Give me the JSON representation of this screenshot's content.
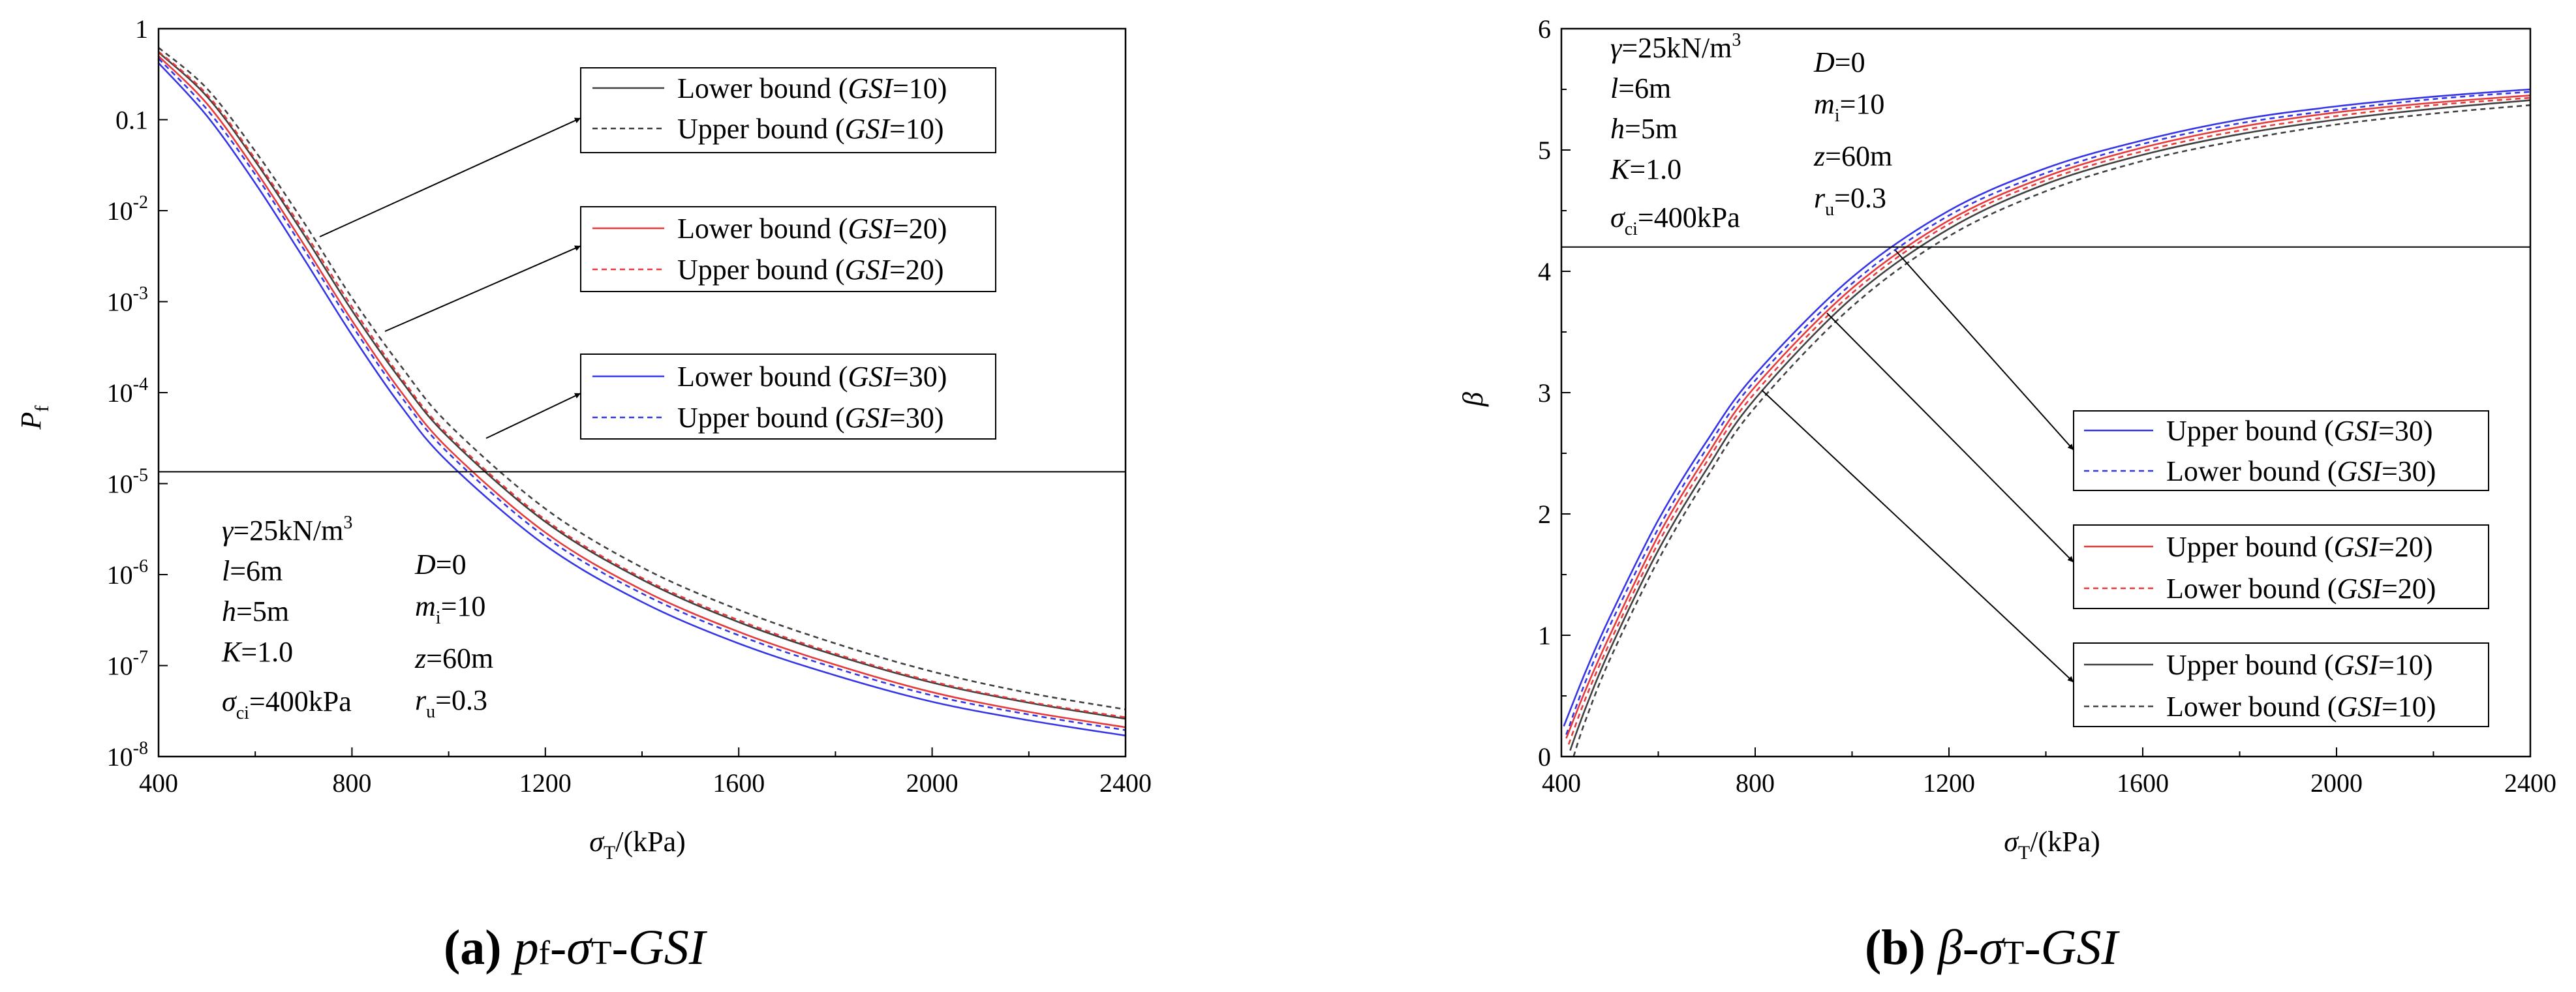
{
  "chart_data": [
    {
      "id": "a",
      "type": "line",
      "xlabel": {
        "main": "σ",
        "sub": "T",
        "tail": "/(kPa)"
      },
      "ylabel": {
        "main": "P",
        "sub": "f"
      },
      "yscale": "log",
      "xlim": [
        400,
        2400
      ],
      "ylim": [
        1e-08,
        1
      ],
      "xticks": [
        "400",
        "800",
        "1200",
        "1600",
        "2000",
        "2400"
      ],
      "yticks": [
        {
          "base": "1",
          "exp": ""
        },
        {
          "base": "0.1",
          "exp": ""
        },
        {
          "base": "10",
          "exp": "-2"
        },
        {
          "base": "10",
          "exp": "-3"
        },
        {
          "base": "10",
          "exp": "-4"
        },
        {
          "base": "10",
          "exp": "-5"
        },
        {
          "base": "10",
          "exp": "-6"
        },
        {
          "base": "10",
          "exp": "-7"
        },
        {
          "base": "10",
          "exp": "-8"
        }
      ],
      "reference_line": 1.35e-05,
      "legend_groups": [
        {
          "entries": [
            {
              "prefix": "Lower bound (",
              "gsi": "GSI",
              "suffix": "=10)",
              "color": "#404040",
              "dash": "solid"
            },
            {
              "prefix": "Upper bound (",
              "gsi": "GSI",
              "suffix": "=10)",
              "color": "#404040",
              "dash": "dashed"
            }
          ]
        },
        {
          "entries": [
            {
              "prefix": "Lower bound (",
              "gsi": "GSI",
              "suffix": "=20)",
              "color": "#e8393a",
              "dash": "solid"
            },
            {
              "prefix": "Upper bound (",
              "gsi": "GSI",
              "suffix": "=20)",
              "color": "#e8393a",
              "dash": "dashed"
            }
          ]
        },
        {
          "entries": [
            {
              "prefix": "Lower bound (",
              "gsi": "GSI",
              "suffix": "=30)",
              "color": "#3535e8",
              "dash": "solid"
            },
            {
              "prefix": "Upper bound (",
              "gsi": "GSI",
              "suffix": "=30)",
              "color": "#3535e8",
              "dash": "dashed"
            }
          ]
        }
      ],
      "params_left": [
        {
          "sym": "γ",
          "sub": "",
          "val": "=25kN/m",
          "sup": "3"
        },
        {
          "sym": "l",
          "sub": "",
          "val": "=6m",
          "sup": ""
        },
        {
          "sym": "h",
          "sub": "",
          "val": "=5m",
          "sup": ""
        },
        {
          "sym": "K",
          "sub": "",
          "val": "=1.0",
          "sup": ""
        },
        {
          "sym": "σ",
          "sub": "ci",
          "val": "=400kPa",
          "sup": ""
        }
      ],
      "params_right": [
        {
          "sym": "D",
          "sub": "",
          "val": "=0",
          "sup": ""
        },
        {
          "sym": "m",
          "sub": "i",
          "val": "=10",
          "sup": ""
        },
        {
          "sym": "z",
          "sub": "",
          "val": "=60m",
          "sup": ""
        },
        {
          "sym": "r",
          "sub": "u",
          "val": "=0.3",
          "sup": ""
        }
      ],
      "series": [
        {
          "color": "#404040",
          "dash": "solid",
          "x": [
            400,
            500,
            600,
            700,
            800,
            900,
            1000,
            1200,
            1400,
            1600,
            1800,
            2000,
            2200,
            2400
          ],
          "y": [
            0.55,
            0.18,
            0.035,
            0.0055,
            0.0008,
            0.00014,
            3.2e-05,
            3.8e-06,
            8.8e-07,
            3e-07,
            1.3e-07,
            6.5e-08,
            3.9e-08,
            2.6e-08
          ]
        },
        {
          "color": "#404040",
          "dash": "dashed",
          "x": [
            400,
            500,
            600,
            700,
            800,
            900,
            1000,
            1200,
            1400,
            1600,
            1800,
            2000,
            2200,
            2400
          ],
          "y": [
            0.62,
            0.22,
            0.045,
            0.0075,
            0.0011,
            0.0002,
            4.5e-05,
            5.3e-06,
            1.2e-06,
            4.1e-07,
            1.75e-07,
            8.6e-08,
            5e-08,
            3.3e-08
          ]
        },
        {
          "color": "#e8393a",
          "dash": "solid",
          "x": [
            400,
            500,
            600,
            700,
            800,
            900,
            1000,
            1200,
            1400,
            1600,
            1800,
            2000,
            2200,
            2400
          ],
          "y": [
            0.5,
            0.15,
            0.028,
            0.0043,
            0.00062,
            0.000105,
            2.4e-05,
            2.9e-06,
            6.8e-07,
            2.35e-07,
            1.02e-07,
            5.1e-08,
            3.1e-08,
            2.1e-08
          ]
        },
        {
          "color": "#e8393a",
          "dash": "dashed",
          "x": [
            400,
            500,
            600,
            700,
            800,
            900,
            1000,
            1200,
            1400,
            1600,
            1800,
            2000,
            2200,
            2400
          ],
          "y": [
            0.56,
            0.19,
            0.037,
            0.006,
            0.00088,
            0.00015,
            3.4e-05,
            4e-06,
            9.2e-07,
            3.15e-07,
            1.35e-07,
            6.7e-08,
            4e-08,
            2.7e-08
          ]
        },
        {
          "color": "#3535e8",
          "dash": "solid",
          "x": [
            400,
            500,
            600,
            700,
            800,
            900,
            1000,
            1200,
            1400,
            1600,
            1800,
            2000,
            2200,
            2400
          ],
          "y": [
            0.42,
            0.11,
            0.02,
            0.003,
            0.00043,
            7.3e-05,
            1.7e-05,
            2.1e-06,
            5e-07,
            1.75e-07,
            7.8e-08,
            4e-08,
            2.5e-08,
            1.7e-08
          ]
        },
        {
          "color": "#3535e8",
          "dash": "dashed",
          "x": [
            400,
            500,
            600,
            700,
            800,
            900,
            1000,
            1200,
            1400,
            1600,
            1800,
            2000,
            2200,
            2400
          ],
          "y": [
            0.47,
            0.13,
            0.025,
            0.0038,
            0.00055,
            9.3e-05,
            2.15e-05,
            2.6e-06,
            6.2e-07,
            2.15e-07,
            9.4e-08,
            4.7e-08,
            2.9e-08,
            1.95e-08
          ]
        }
      ]
    },
    {
      "id": "b",
      "type": "line",
      "xlabel": {
        "main": "σ",
        "sub": "T",
        "tail": "/(kPa)"
      },
      "ylabel": {
        "main": "β",
        "sub": ""
      },
      "yscale": "linear",
      "xlim": [
        400,
        2400
      ],
      "ylim": [
        0,
        6
      ],
      "xticks": [
        "400",
        "800",
        "1200",
        "1600",
        "2000",
        "2400"
      ],
      "yticks": [
        "0",
        "1",
        "2",
        "3",
        "4",
        "5",
        "6"
      ],
      "reference_line": 4.2,
      "legend_groups": [
        {
          "entries": [
            {
              "prefix": "Upper bound (",
              "gsi": "GSI",
              "suffix": "=30)",
              "color": "#3535e8",
              "dash": "solid"
            },
            {
              "prefix": "Lower bound (",
              "gsi": "GSI",
              "suffix": "=30)",
              "color": "#3535e8",
              "dash": "dashed"
            }
          ]
        },
        {
          "entries": [
            {
              "prefix": "Upper bound (",
              "gsi": "GSI",
              "suffix": "=20)",
              "color": "#e8393a",
              "dash": "solid"
            },
            {
              "prefix": "Lower bound (",
              "gsi": "GSI",
              "suffix": "=20)",
              "color": "#e8393a",
              "dash": "dashed"
            }
          ]
        },
        {
          "entries": [
            {
              "prefix": "Upper bound (",
              "gsi": "GSI",
              "suffix": "=10)",
              "color": "#404040",
              "dash": "solid"
            },
            {
              "prefix": "Lower bound (",
              "gsi": "GSI",
              "suffix": "=10)",
              "color": "#404040",
              "dash": "dashed"
            }
          ]
        }
      ],
      "params_left": [
        {
          "sym": "γ",
          "sub": "",
          "val": "=25kN/m",
          "sup": "3"
        },
        {
          "sym": "l",
          "sub": "",
          "val": "=6m",
          "sup": ""
        },
        {
          "sym": "h",
          "sub": "",
          "val": "=5m",
          "sup": ""
        },
        {
          "sym": "K",
          "sub": "",
          "val": "=1.0",
          "sup": ""
        },
        {
          "sym": "σ",
          "sub": "ci",
          "val": "=400kPa",
          "sup": ""
        }
      ],
      "params_right": [
        {
          "sym": "D",
          "sub": "",
          "val": "=0",
          "sup": ""
        },
        {
          "sym": "m",
          "sub": "i",
          "val": "=10",
          "sup": ""
        },
        {
          "sym": "z",
          "sub": "",
          "val": "=60m",
          "sup": ""
        },
        {
          "sym": "r",
          "sub": "u",
          "val": "=0.3",
          "sup": ""
        }
      ],
      "series": [
        {
          "color": "#3535e8",
          "dash": "solid",
          "x": [
            405,
            450,
            500,
            600,
            700,
            800,
            1000,
            1200,
            1400,
            1600,
            1800,
            2000,
            2200,
            2400
          ],
          "y": [
            0.25,
            0.7,
            1.15,
            1.95,
            2.6,
            3.15,
            3.95,
            4.5,
            4.85,
            5.08,
            5.25,
            5.36,
            5.44,
            5.5
          ]
        },
        {
          "color": "#3535e8",
          "dash": "dashed",
          "x": [
            410,
            450,
            500,
            600,
            700,
            800,
            1000,
            1200,
            1400,
            1600,
            1800,
            2000,
            2200,
            2400
          ],
          "y": [
            0.18,
            0.62,
            1.08,
            1.88,
            2.54,
            3.1,
            3.9,
            4.46,
            4.81,
            5.05,
            5.22,
            5.33,
            5.42,
            5.48
          ]
        },
        {
          "color": "#e8393a",
          "dash": "solid",
          "x": [
            410,
            450,
            500,
            600,
            700,
            800,
            1000,
            1200,
            1400,
            1600,
            1800,
            2000,
            2200,
            2400
          ],
          "y": [
            0.15,
            0.55,
            1.0,
            1.82,
            2.48,
            3.05,
            3.86,
            4.42,
            4.78,
            5.02,
            5.19,
            5.31,
            5.39,
            5.45
          ]
        },
        {
          "color": "#e8393a",
          "dash": "dashed",
          "x": [
            415,
            450,
            500,
            600,
            700,
            800,
            1000,
            1200,
            1400,
            1600,
            1800,
            2000,
            2200,
            2400
          ],
          "y": [
            0.1,
            0.48,
            0.94,
            1.76,
            2.43,
            3.0,
            3.82,
            4.39,
            4.75,
            4.99,
            5.16,
            5.28,
            5.37,
            5.43
          ]
        },
        {
          "color": "#404040",
          "dash": "solid",
          "x": [
            418,
            450,
            500,
            600,
            700,
            800,
            1000,
            1200,
            1400,
            1600,
            1800,
            2000,
            2200,
            2400
          ],
          "y": [
            0.05,
            0.4,
            0.88,
            1.7,
            2.37,
            2.95,
            3.78,
            4.35,
            4.72,
            4.96,
            5.13,
            5.25,
            5.34,
            5.41
          ]
        },
        {
          "color": "#404040",
          "dash": "dashed",
          "x": [
            425,
            450,
            500,
            600,
            700,
            800,
            1000,
            1200,
            1400,
            1600,
            1800,
            2000,
            2200,
            2400
          ],
          "y": [
            0.0,
            0.3,
            0.8,
            1.62,
            2.3,
            2.88,
            3.71,
            4.29,
            4.66,
            4.91,
            5.08,
            5.21,
            5.3,
            5.37
          ]
        }
      ]
    }
  ],
  "captions": [
    {
      "tag": "(a)",
      "p": "p",
      "f": "f",
      "dash1": "-",
      "sigma": "σ",
      "T": "T",
      "dash2": "-",
      "gsi": "GSI"
    },
    {
      "tag": "(b)",
      "p": "β",
      "f": "",
      "dash1": "-",
      "sigma": "σ",
      "T": "T",
      "dash2": "-",
      "gsi": "GSI"
    }
  ]
}
